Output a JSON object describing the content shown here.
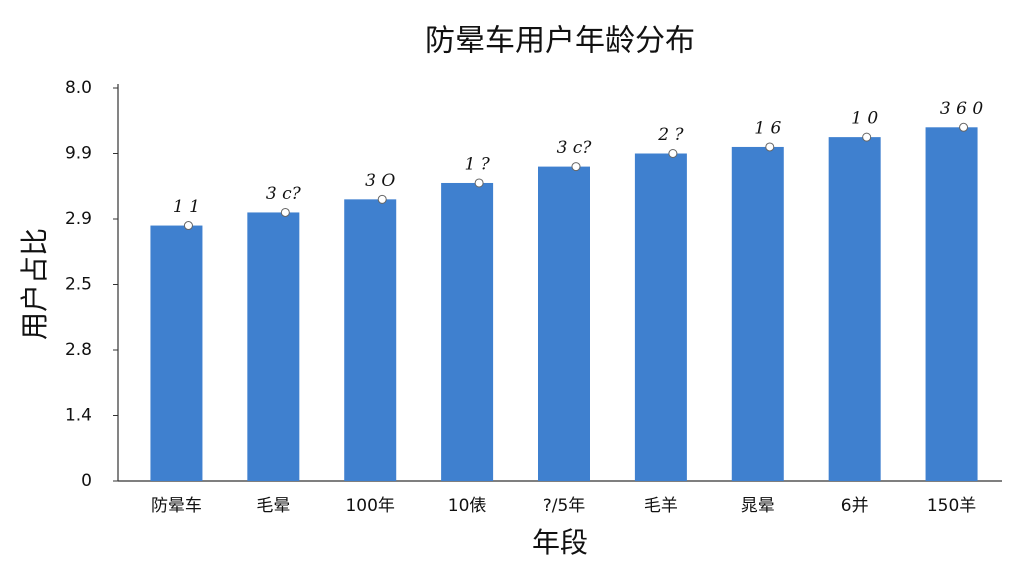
{
  "chart_data": {
    "type": "bar",
    "title": "防晕车用户年龄分布",
    "x_label": "年段",
    "y_label": "用户占比",
    "categories": [
      "防晕车",
      "毛晕",
      "100年",
      "10俵",
      "?/5年",
      "毛羊",
      "晁晕",
      "6并",
      "150羊"
    ],
    "values": [
      3.9,
      4.1,
      4.3,
      4.55,
      4.8,
      5.0,
      5.1,
      5.25,
      5.4
    ],
    "annotations": [
      "1 1",
      "3 c?",
      "3 O",
      "1 ?",
      "3 c?",
      "2 ?",
      "1 6",
      "1 0",
      "3 6 0"
    ],
    "color": "#3f80cf",
    "ylim": [
      0,
      6
    ],
    "yticks": [
      0,
      {
        "value": 1,
        "label": "1.4"
      },
      {
        "value": 2,
        "label": "2.8"
      },
      {
        "value": 3,
        "label": "2.5"
      },
      {
        "value": 4,
        "label": "2.9"
      },
      {
        "value": 5,
        "label": "9.9"
      },
      {
        "value": 6,
        "label": "8.0"
      }
    ],
    "grid": false
  }
}
